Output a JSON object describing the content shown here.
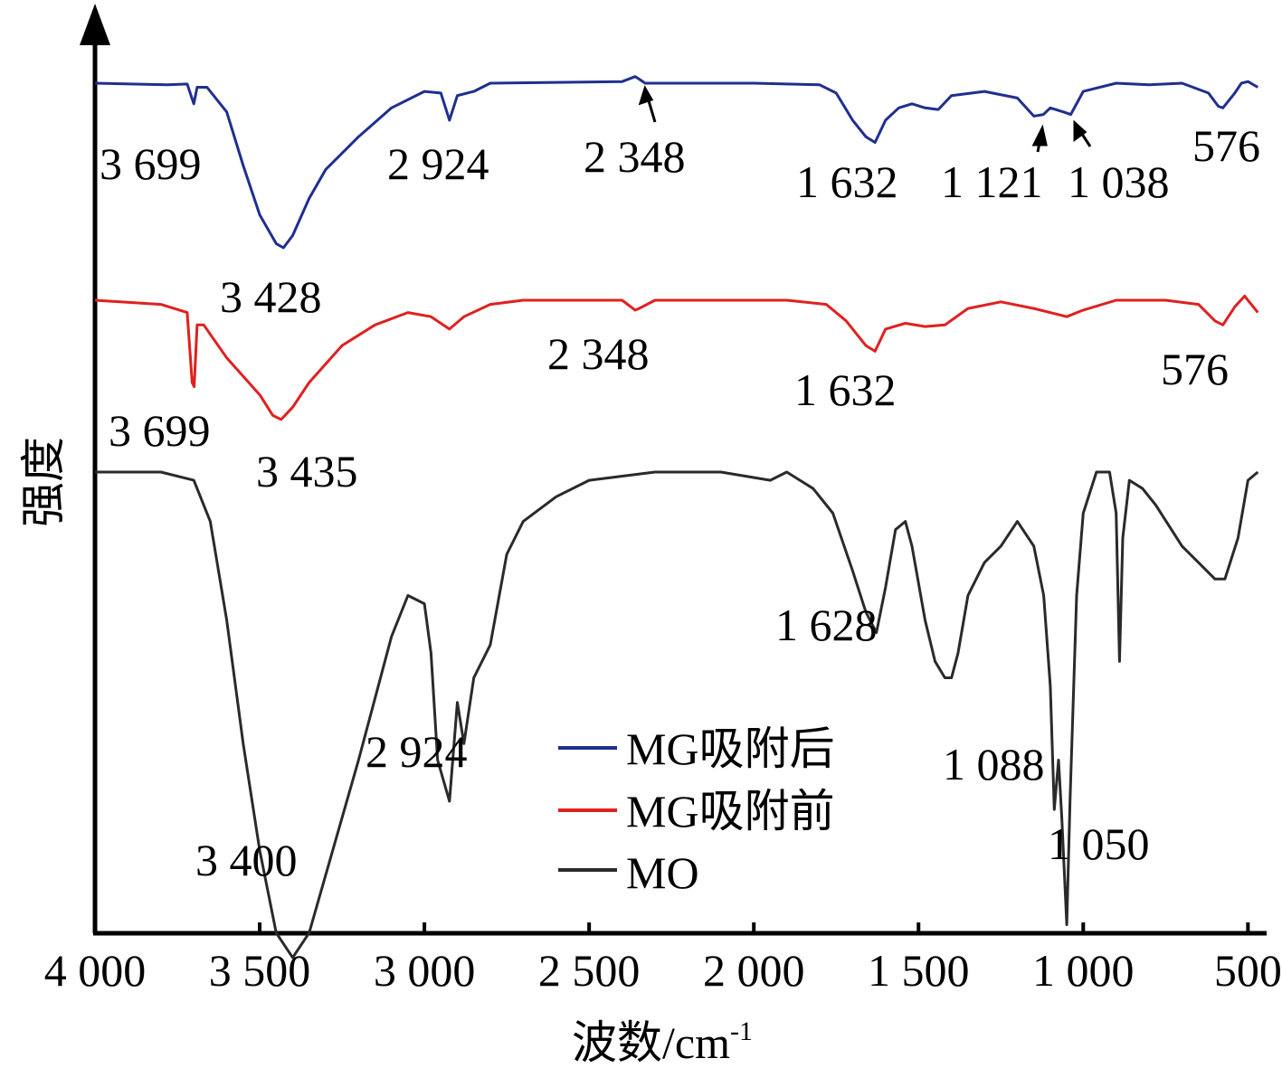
{
  "chart_data": {
    "type": "line",
    "xlabel": "波数/cm",
    "xlabel_sup": "-1",
    "ylabel": "强度",
    "xlim": [
      4000,
      450
    ],
    "x_reversed": true,
    "xticks": [
      {
        "value": 4000,
        "label": "4 000"
      },
      {
        "value": 3500,
        "label": "3 500"
      },
      {
        "value": 3000,
        "label": "3 000"
      },
      {
        "value": 2500,
        "label": "2 500"
      },
      {
        "value": 2000,
        "label": "2 000"
      },
      {
        "value": 1500,
        "label": "1 500"
      },
      {
        "value": 1000,
        "label": "1 000"
      },
      {
        "value": 500,
        "label": "500"
      }
    ],
    "legend_position": "bottom-center",
    "series": [
      {
        "name": "MG吸附后",
        "color": "#1f2f8f",
        "baseline": 0.8,
        "points": [
          [
            4000,
            0.0
          ],
          [
            3780,
            -0.02
          ],
          [
            3720,
            -0.01
          ],
          [
            3700,
            -0.25
          ],
          [
            3690,
            -0.05
          ],
          [
            3660,
            -0.05
          ],
          [
            3600,
            -0.35
          ],
          [
            3550,
            -1.0
          ],
          [
            3500,
            -1.6
          ],
          [
            3450,
            -1.95
          ],
          [
            3428,
            -2.0
          ],
          [
            3400,
            -1.85
          ],
          [
            3350,
            -1.4
          ],
          [
            3300,
            -1.05
          ],
          [
            3200,
            -0.65
          ],
          [
            3100,
            -0.3
          ],
          [
            3000,
            -0.1
          ],
          [
            2950,
            -0.12
          ],
          [
            2924,
            -0.45
          ],
          [
            2900,
            -0.15
          ],
          [
            2850,
            -0.1
          ],
          [
            2800,
            0.0
          ],
          [
            2600,
            0.01
          ],
          [
            2400,
            0.02
          ],
          [
            2360,
            0.08
          ],
          [
            2348,
            0.05
          ],
          [
            2330,
            0.0
          ],
          [
            2000,
            0.0
          ],
          [
            1800,
            -0.02
          ],
          [
            1750,
            -0.12
          ],
          [
            1700,
            -0.45
          ],
          [
            1660,
            -0.65
          ],
          [
            1632,
            -0.72
          ],
          [
            1600,
            -0.45
          ],
          [
            1560,
            -0.3
          ],
          [
            1520,
            -0.25
          ],
          [
            1480,
            -0.3
          ],
          [
            1440,
            -0.32
          ],
          [
            1400,
            -0.15
          ],
          [
            1300,
            -0.1
          ],
          [
            1200,
            -0.18
          ],
          [
            1150,
            -0.4
          ],
          [
            1121,
            -0.38
          ],
          [
            1100,
            -0.3
          ],
          [
            1060,
            -0.35
          ],
          [
            1038,
            -0.38
          ],
          [
            1000,
            -0.1
          ],
          [
            900,
            0.0
          ],
          [
            800,
            -0.02
          ],
          [
            700,
            0.0
          ],
          [
            620,
            -0.12
          ],
          [
            590,
            -0.28
          ],
          [
            576,
            -0.3
          ],
          [
            540,
            -0.12
          ],
          [
            520,
            0.0
          ],
          [
            500,
            0.02
          ],
          [
            470,
            -0.05
          ]
        ]
      },
      {
        "name": "MG吸附前",
        "color": "#e02020",
        "baseline": 0.0,
        "points": [
          [
            4000,
            0.0
          ],
          [
            3800,
            -0.05
          ],
          [
            3720,
            -0.15
          ],
          [
            3705,
            -1.0
          ],
          [
            3699,
            -1.05
          ],
          [
            3690,
            -0.3
          ],
          [
            3670,
            -0.3
          ],
          [
            3600,
            -0.7
          ],
          [
            3500,
            -1.15
          ],
          [
            3460,
            -1.4
          ],
          [
            3435,
            -1.45
          ],
          [
            3400,
            -1.3
          ],
          [
            3350,
            -1.0
          ],
          [
            3250,
            -0.55
          ],
          [
            3150,
            -0.3
          ],
          [
            3050,
            -0.15
          ],
          [
            2980,
            -0.2
          ],
          [
            2924,
            -0.35
          ],
          [
            2880,
            -0.2
          ],
          [
            2800,
            -0.05
          ],
          [
            2700,
            0.0
          ],
          [
            2400,
            0.0
          ],
          [
            2360,
            -0.12
          ],
          [
            2348,
            -0.1
          ],
          [
            2300,
            0.0
          ],
          [
            1900,
            0.0
          ],
          [
            1780,
            -0.05
          ],
          [
            1720,
            -0.25
          ],
          [
            1660,
            -0.55
          ],
          [
            1632,
            -0.62
          ],
          [
            1600,
            -0.35
          ],
          [
            1540,
            -0.28
          ],
          [
            1480,
            -0.32
          ],
          [
            1420,
            -0.3
          ],
          [
            1350,
            -0.1
          ],
          [
            1250,
            -0.02
          ],
          [
            1150,
            -0.1
          ],
          [
            1050,
            -0.2
          ],
          [
            1000,
            -0.12
          ],
          [
            900,
            0.0
          ],
          [
            750,
            0.0
          ],
          [
            650,
            -0.05
          ],
          [
            600,
            -0.25
          ],
          [
            576,
            -0.3
          ],
          [
            540,
            -0.08
          ],
          [
            510,
            0.05
          ],
          [
            470,
            -0.15
          ]
        ]
      },
      {
        "name": "MO",
        "color": "#2a2a2a",
        "baseline": -1.9,
        "points": [
          [
            4000,
            0.0
          ],
          [
            3800,
            0.0
          ],
          [
            3700,
            -0.1
          ],
          [
            3650,
            -0.6
          ],
          [
            3600,
            -1.8
          ],
          [
            3550,
            -3.3
          ],
          [
            3500,
            -4.6
          ],
          [
            3450,
            -5.6
          ],
          [
            3400,
            -5.9
          ],
          [
            3350,
            -5.6
          ],
          [
            3300,
            -4.9
          ],
          [
            3200,
            -3.5
          ],
          [
            3100,
            -2.0
          ],
          [
            3050,
            -1.5
          ],
          [
            3000,
            -1.6
          ],
          [
            2980,
            -2.2
          ],
          [
            2960,
            -3.5
          ],
          [
            2924,
            -4.0
          ],
          [
            2900,
            -2.8
          ],
          [
            2880,
            -3.3
          ],
          [
            2850,
            -2.5
          ],
          [
            2800,
            -2.1
          ],
          [
            2750,
            -1.0
          ],
          [
            2700,
            -0.6
          ],
          [
            2600,
            -0.3
          ],
          [
            2500,
            -0.1
          ],
          [
            2300,
            0.0
          ],
          [
            2100,
            0.0
          ],
          [
            1950,
            -0.1
          ],
          [
            1900,
            0.0
          ],
          [
            1820,
            -0.2
          ],
          [
            1760,
            -0.5
          ],
          [
            1700,
            -1.2
          ],
          [
            1660,
            -1.7
          ],
          [
            1628,
            -1.95
          ],
          [
            1600,
            -1.4
          ],
          [
            1570,
            -0.7
          ],
          [
            1540,
            -0.6
          ],
          [
            1520,
            -0.9
          ],
          [
            1480,
            -1.8
          ],
          [
            1450,
            -2.3
          ],
          [
            1420,
            -2.5
          ],
          [
            1400,
            -2.5
          ],
          [
            1380,
            -2.2
          ],
          [
            1350,
            -1.5
          ],
          [
            1300,
            -1.1
          ],
          [
            1250,
            -0.9
          ],
          [
            1200,
            -0.6
          ],
          [
            1150,
            -0.9
          ],
          [
            1120,
            -1.5
          ],
          [
            1100,
            -2.6
          ],
          [
            1088,
            -4.1
          ],
          [
            1075,
            -3.5
          ],
          [
            1065,
            -4.2
          ],
          [
            1050,
            -5.5
          ],
          [
            1040,
            -4.0
          ],
          [
            1020,
            -1.5
          ],
          [
            1000,
            -0.5
          ],
          [
            960,
            0.0
          ],
          [
            920,
            0.0
          ],
          [
            900,
            -0.5
          ],
          [
            890,
            -2.3
          ],
          [
            880,
            -0.8
          ],
          [
            860,
            -0.1
          ],
          [
            820,
            -0.2
          ],
          [
            780,
            -0.4
          ],
          [
            700,
            -0.9
          ],
          [
            650,
            -1.1
          ],
          [
            600,
            -1.3
          ],
          [
            570,
            -1.3
          ],
          [
            530,
            -0.8
          ],
          [
            500,
            -0.1
          ],
          [
            470,
            0.0
          ]
        ]
      }
    ],
    "annotations": [
      {
        "text": "3 699"
      },
      {
        "text": "2 924"
      },
      {
        "text": "2 348"
      },
      {
        "text": "1 632"
      },
      {
        "text": "1 121"
      },
      {
        "text": "1 038"
      },
      {
        "text": "576"
      },
      {
        "text": "3 428"
      },
      {
        "text": "2 348"
      },
      {
        "text": "1 632"
      },
      {
        "text": "576"
      },
      {
        "text": "3 699"
      },
      {
        "text": "3 435"
      },
      {
        "text": "1 628"
      },
      {
        "text": "2 924"
      },
      {
        "text": "1 088"
      },
      {
        "text": "1 050"
      },
      {
        "text": "3 400"
      }
    ]
  }
}
